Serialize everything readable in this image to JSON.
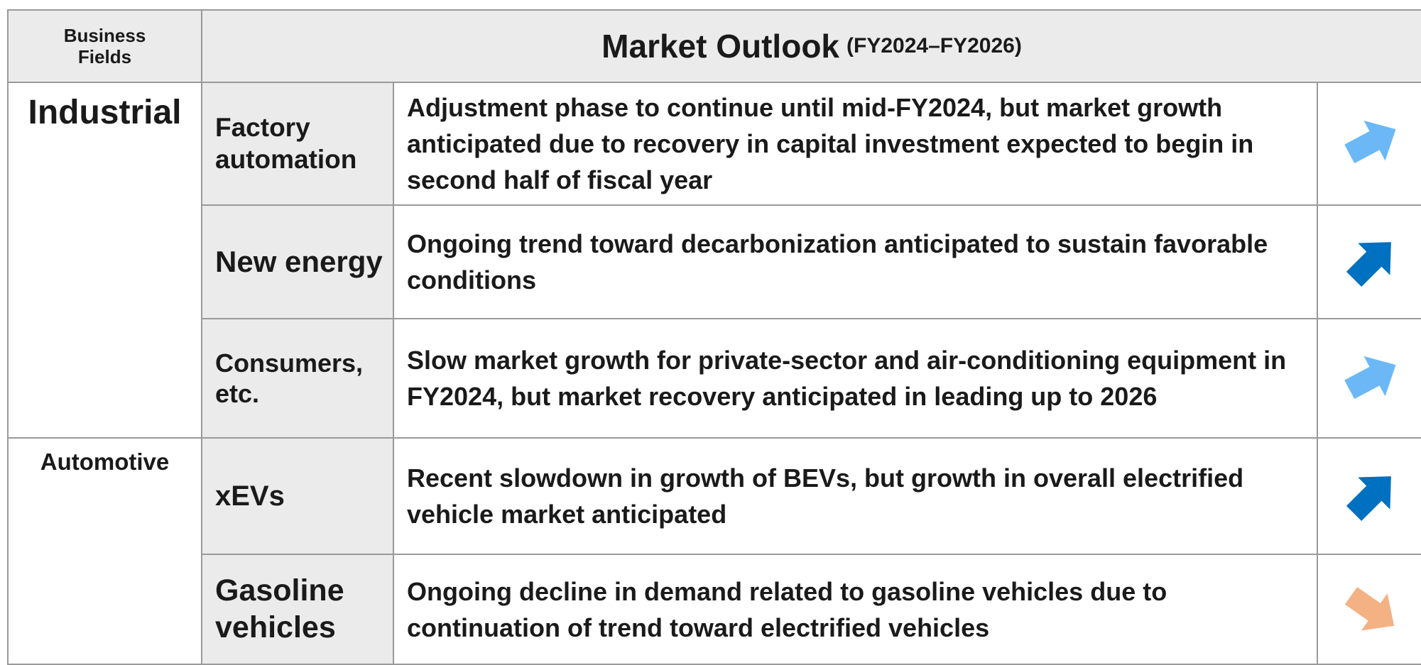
{
  "header": {
    "fields_label": "Business Fields",
    "title": "Market Outlook",
    "period": "(FY2024–FY2026)"
  },
  "groups": [
    {
      "name": "Industrial",
      "rows": [
        {
          "field": "Factory automation",
          "outlook": "Adjustment phase to continue until mid-FY2024, but market growth anticipated due to recovery in capital investment expected to begin in second half of fiscal year"
        },
        {
          "field": "New energy",
          "outlook": "Ongoing trend toward decarbonization anticipated to sustain favorable conditions"
        },
        {
          "field": "Consumers, etc.",
          "outlook": "Slow market growth for private-sector and air-conditioning equipment in FY2024, but market recovery anticipated in leading up to 2026"
        }
      ]
    },
    {
      "name": "Automotive",
      "rows": [
        {
          "field": "xEVs",
          "outlook": "Recent slowdown in growth of BEVs, but growth in overall electrified vehicle market anticipated"
        },
        {
          "field": "Gasoline vehicles",
          "outlook": "Ongoing decline in demand related to gasoline vehicles due to continuation of trend toward electrified vehicles"
        }
      ]
    }
  ]
}
